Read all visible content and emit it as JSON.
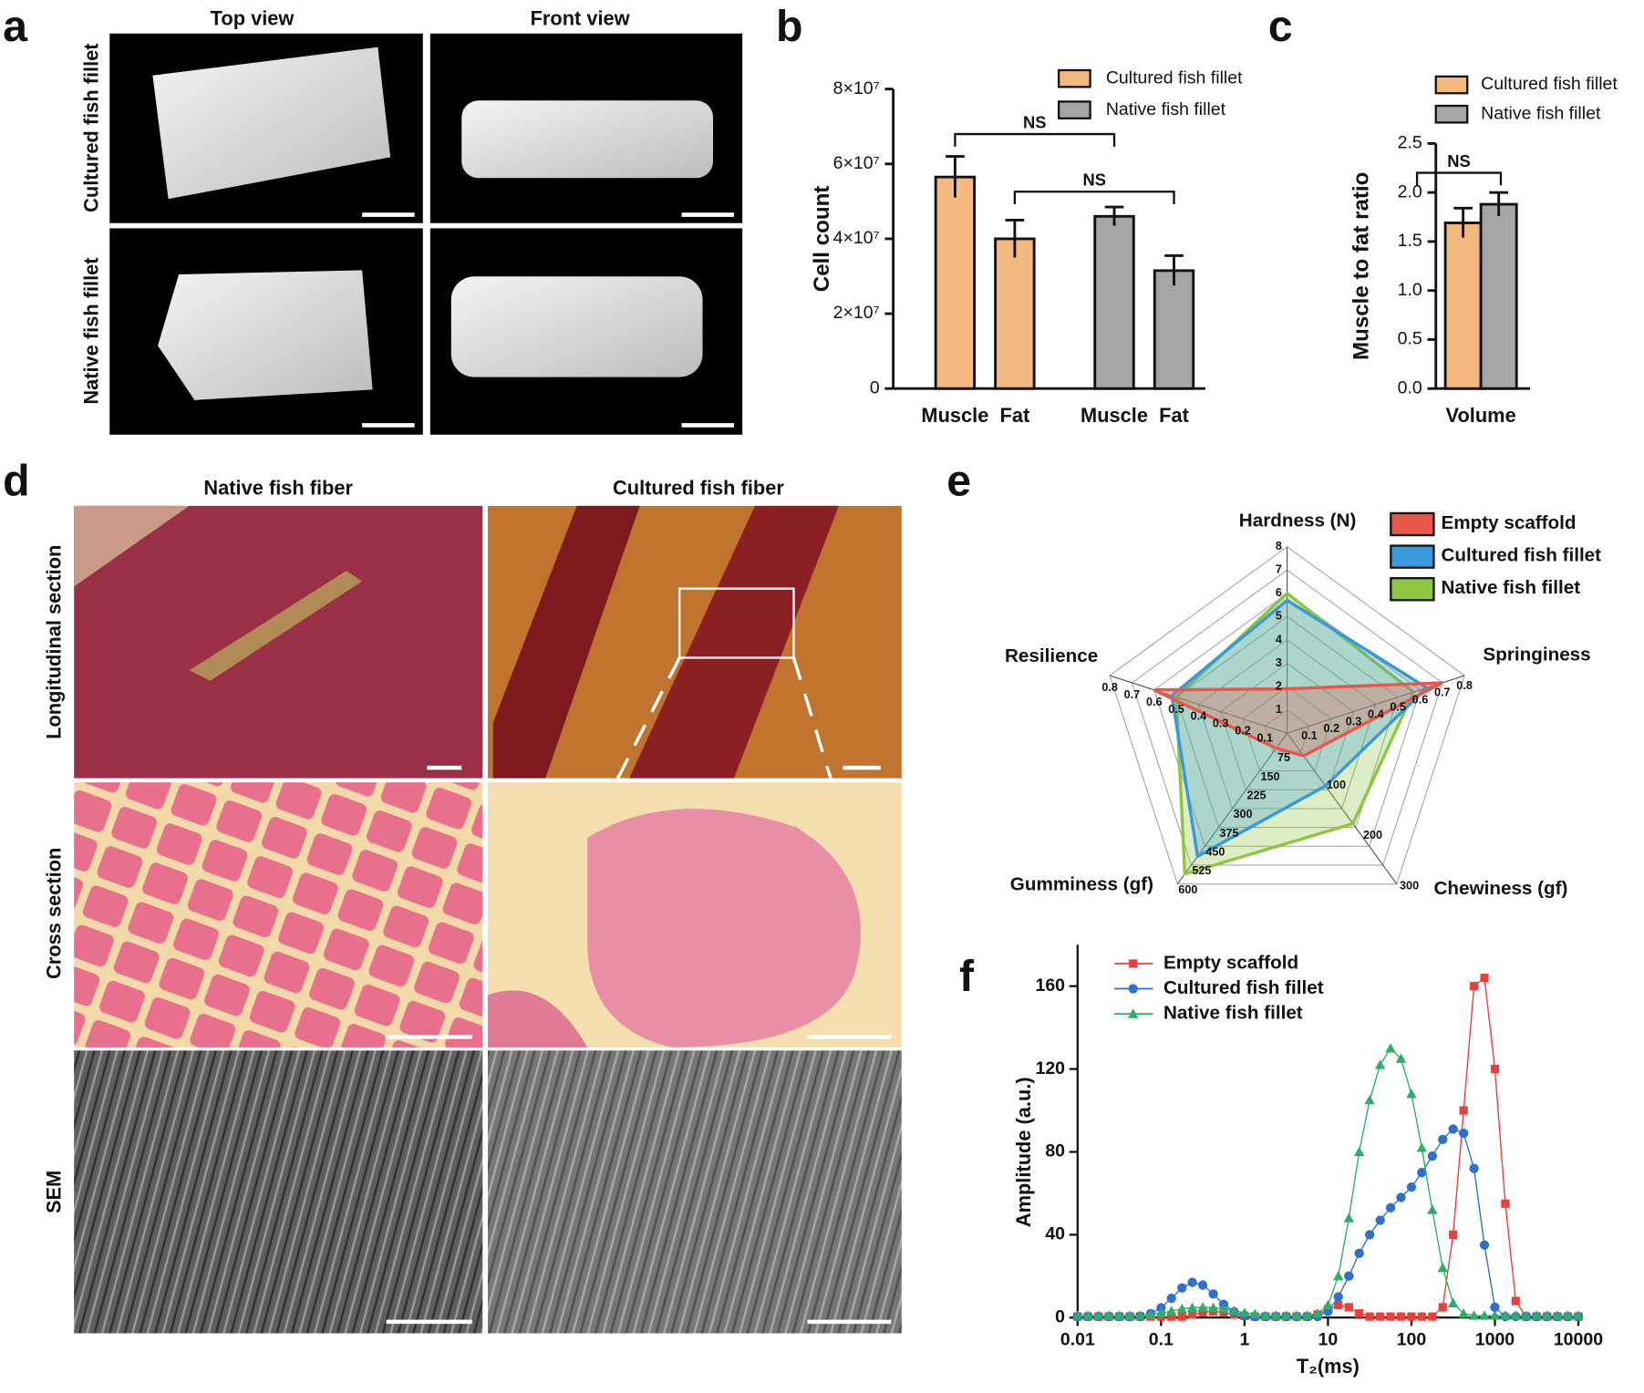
{
  "panel_labels": [
    "a",
    "b",
    "c",
    "d",
    "e",
    "f"
  ],
  "panel_a": {
    "columns": [
      "Top view",
      "Front view"
    ],
    "rows": [
      "Cultured fish fillet",
      "Native fish fillet"
    ]
  },
  "panel_d": {
    "columns": [
      "Native fish fiber",
      "Cultured fish fiber"
    ],
    "rows": [
      "Longitudinal section",
      "Cross section",
      "SEM"
    ]
  },
  "chart_data": [
    {
      "type": "bar",
      "ylabel": "Cell count",
      "categories": [
        "Muscle",
        "Fat",
        "Muscle",
        "Fat"
      ],
      "series": [
        {
          "name": "Cultured fish fillet",
          "color": "#f4b97f",
          "values": [
            56500000,
            40000000,
            null,
            null
          ],
          "errors": [
            5500000,
            5000000,
            null,
            null
          ]
        },
        {
          "name": "Native fish fillet",
          "color": "#a5a5a8",
          "values": [
            null,
            null,
            46000000,
            31500000
          ],
          "errors": [
            null,
            null,
            2500000,
            4000000
          ]
        }
      ],
      "ylim": [
        0,
        80000000
      ],
      "yticks": [
        0,
        {
          "value": 20000000,
          "label": "2×10⁷"
        },
        {
          "value": 40000000,
          "label": "4×10⁷"
        },
        {
          "value": 60000000,
          "label": "6×10⁷"
        },
        {
          "value": 80000000,
          "label": "8×10⁷"
        }
      ],
      "annotations": [
        "NS",
        "NS"
      ]
    },
    {
      "type": "bar",
      "ylabel": "Muscle to fat ratio",
      "categories": [
        "Volume"
      ],
      "series": [
        {
          "name": "Cultured fish fillet",
          "color": "#f4b97f",
          "values": [
            1.69
          ],
          "errors": [
            0.15
          ]
        },
        {
          "name": "Native fish fillet",
          "color": "#a5a5a8",
          "values": [
            1.88
          ],
          "errors": [
            0.12
          ]
        }
      ],
      "ylim": [
        0,
        2.5
      ],
      "yticks": [
        {
          "value": 0,
          "label": "0.0"
        },
        0.5,
        {
          "value": 1,
          "label": "1.0"
        },
        1.5,
        {
          "value": 2,
          "label": "2.0"
        },
        2.5
      ],
      "annotations": [
        "NS"
      ]
    },
    {
      "type": "radar",
      "axes": [
        {
          "name": "Hardness (N)",
          "lim": [
            0,
            8
          ],
          "ticks": [
            1,
            2,
            3,
            4,
            5,
            6,
            7,
            8
          ]
        },
        {
          "name": "Springiness",
          "lim": [
            0,
            0.8
          ],
          "ticks": [
            0.1,
            0.2,
            0.3,
            0.4,
            0.5,
            0.6,
            0.7,
            0.8
          ]
        },
        {
          "name": "Chewiness (gf)",
          "lim": [
            0,
            300
          ],
          "ticks": [
            100,
            200,
            300
          ]
        },
        {
          "name": "Gumminess (gf)",
          "lim": [
            0,
            600
          ],
          "ticks": [
            75,
            150,
            225,
            300,
            375,
            450,
            525,
            600
          ]
        },
        {
          "name": "Resilience",
          "lim": [
            0,
            0.8
          ],
          "ticks": [
            0.1,
            0.2,
            0.3,
            0.4,
            0.5,
            0.6,
            0.7,
            0.8
          ]
        }
      ],
      "series": [
        {
          "name": "Empty scaffold",
          "color": "#e8584a",
          "values": [
            1.9,
            0.7,
            45,
            60,
            0.6
          ]
        },
        {
          "name": "Cultured fish fillet",
          "color": "#3a9ad9",
          "values": [
            5.7,
            0.63,
            105,
            490,
            0.52
          ]
        },
        {
          "name": "Native fish fillet",
          "color": "#8dc63f",
          "values": [
            6.0,
            0.57,
            180,
            560,
            0.5
          ]
        }
      ]
    },
    {
      "type": "line",
      "xscale": "log",
      "xlabel": "T₂(ms)",
      "ylabel": "Amplitude (a.u.)",
      "x": [
        0.01,
        0.0133,
        0.0178,
        0.0237,
        0.0316,
        0.0422,
        0.0562,
        0.075,
        0.1,
        0.133,
        0.178,
        0.237,
        0.316,
        0.422,
        0.562,
        0.75,
        1,
        1.33,
        1.78,
        2.37,
        3.16,
        4.22,
        5.62,
        7.5,
        10,
        13.3,
        17.8,
        23.7,
        31.6,
        42.2,
        56.2,
        75,
        100,
        133,
        178,
        237,
        316,
        422,
        562,
        750,
        1000,
        1334,
        1778,
        2371,
        3162,
        4217,
        5623,
        7499,
        10000
      ],
      "series": [
        {
          "name": "Empty scaffold",
          "color": "#e8403a",
          "marker": "square",
          "values": [
            0.5,
            0.5,
            0.5,
            0.5,
            0.5,
            0.5,
            0.5,
            0.5,
            0.5,
            0.5,
            0.5,
            1.5,
            2.5,
            3,
            2.5,
            1.5,
            0.8,
            0.5,
            0.5,
            0.5,
            0.5,
            0.5,
            0.5,
            1.5,
            4,
            6,
            5,
            2,
            0.5,
            0.5,
            0.5,
            0.5,
            0.5,
            0.5,
            0.5,
            5,
            40,
            100,
            160,
            164,
            120,
            55,
            8,
            0.5,
            0.5,
            0.5,
            0.5,
            0.5,
            0.5
          ]
        },
        {
          "name": "Cultured fish fillet",
          "color": "#2f6fd0",
          "marker": "circle",
          "values": [
            0.5,
            0.5,
            0.5,
            0.5,
            0.5,
            0.5,
            0.6,
            1.9,
            4.7,
            9.3,
            14.3,
            17,
            15.7,
            11.4,
            6.4,
            2.8,
            1,
            0.5,
            0.5,
            0.5,
            0.5,
            0.5,
            0.5,
            0.5,
            3,
            10,
            20,
            31,
            40,
            47,
            53,
            58,
            63,
            70,
            78,
            86,
            91,
            89,
            72,
            35,
            5,
            0.5,
            0.5,
            0.5,
            0.5,
            0.5,
            0.5,
            0.5,
            0.5
          ]
        },
        {
          "name": "Native fish fillet",
          "color": "#2fae6a",
          "marker": "triangle",
          "values": [
            1,
            1,
            1,
            1,
            1,
            1,
            1,
            1.5,
            2.3,
            3.2,
            4.2,
            4.8,
            5,
            4.8,
            4.2,
            3.3,
            2.4,
            1.7,
            1,
            1,
            1,
            1,
            1,
            2,
            6,
            20,
            48,
            80,
            105,
            122,
            130,
            125,
            108,
            82,
            52,
            24,
            7,
            2,
            1,
            1,
            1,
            1,
            1,
            1,
            1,
            1,
            1,
            1,
            1
          ]
        }
      ],
      "xlim": [
        0.01,
        10000
      ],
      "xticks": [
        0.01,
        0.1,
        1,
        10,
        100,
        1000,
        10000
      ],
      "ylim": [
        0,
        180
      ],
      "yticks": [
        0,
        40,
        80,
        120,
        160
      ]
    }
  ]
}
